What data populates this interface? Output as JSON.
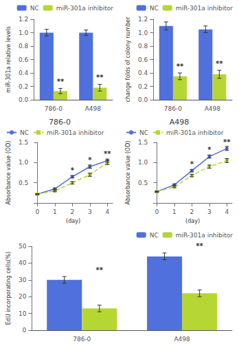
{
  "chart_data": [
    {
      "type": "bar",
      "ylabel": "miR-301a relative levels",
      "categories": [
        "786-0",
        "A498"
      ],
      "series": [
        {
          "name": "NC",
          "values": [
            1.0,
            1.0
          ],
          "errors": [
            0.05,
            0.04
          ]
        },
        {
          "name": "miR-301a inhibitor",
          "values": [
            0.13,
            0.18
          ],
          "errors": [
            0.04,
            0.05
          ]
        }
      ],
      "ylim": [
        0,
        1.2
      ],
      "yticks": [
        {
          "value": 0,
          "label": "0.0"
        },
        0.2,
        0.4,
        0.6,
        0.8,
        {
          "value": 1,
          "label": "1.0"
        },
        1.2
      ],
      "annotations": [
        {
          "text": "**",
          "x": "786-0",
          "y": 0.22
        },
        {
          "text": "**",
          "x": "A498",
          "y": 0.28
        }
      ],
      "legend": "upper right",
      "grid": false
    },
    {
      "type": "line",
      "title": "786-0",
      "xlabel": "(day)",
      "ylabel": "Absorbance value (OD)",
      "x": [
        0,
        1,
        2,
        3,
        4
      ],
      "series": [
        {
          "name": "NC",
          "values": [
            0.22,
            0.35,
            0.65,
            0.9,
            1.05
          ],
          "errors": [
            0.01,
            0.02,
            0.03,
            0.04,
            0.04
          ],
          "marker": "circle",
          "line_style": "solid"
        },
        {
          "name": "miR-301a inhibitor",
          "values": [
            0.22,
            0.3,
            0.5,
            0.7,
            1.0
          ],
          "errors": [
            0.01,
            0.02,
            0.03,
            0.04,
            0.05
          ],
          "marker": "square",
          "line_style": "dashed"
        }
      ],
      "xlim": [
        -0.2,
        4.3
      ],
      "xticks": [
        0,
        1,
        2,
        3,
        4
      ],
      "ylim": [
        0,
        1.5
      ],
      "yticks": [
        0.5,
        {
          "value": 1,
          "label": "1.0"
        },
        1.5
      ],
      "annotations": [
        {
          "text": "*",
          "x": 2,
          "y": 0.73
        },
        {
          "text": "*",
          "x": 3,
          "y": 0.98
        },
        {
          "text": "**",
          "x": 4,
          "y": 1.13
        }
      ],
      "legend": "upper left",
      "grid": false
    },
    {
      "type": "line",
      "title": "A498",
      "xlabel": "(day)",
      "ylabel": "Absorbance value (OD)",
      "x": [
        0,
        1,
        2,
        3,
        4
      ],
      "series": [
        {
          "name": "NC",
          "values": [
            0.28,
            0.45,
            0.8,
            1.15,
            1.35
          ],
          "errors": [
            0.01,
            0.02,
            0.03,
            0.04,
            0.05
          ],
          "marker": "circle",
          "line_style": "solid"
        },
        {
          "name": "miR-301a inhibitor",
          "values": [
            0.28,
            0.4,
            0.68,
            0.9,
            1.05
          ],
          "errors": [
            0.01,
            0.02,
            0.03,
            0.04,
            0.05
          ],
          "marker": "square",
          "line_style": "dashed"
        }
      ],
      "xlim": [
        -0.2,
        4.3
      ],
      "xticks": [
        0,
        1,
        2,
        3,
        4
      ],
      "ylim": [
        0,
        1.5
      ],
      "yticks": [
        0.5,
        {
          "value": 1,
          "label": "1.0"
        },
        1.5
      ],
      "annotations": [
        {
          "text": "*",
          "x": 2,
          "y": 0.88
        },
        {
          "text": "*",
          "x": 3,
          "y": 1.23
        },
        {
          "text": "**",
          "x": 4,
          "y": 1.43
        }
      ],
      "legend": "upper left",
      "grid": false
    },
    {
      "type": "bar",
      "ylabel": "change folds of colony number",
      "categories": [
        "786-0",
        "A498"
      ],
      "series": [
        {
          "name": "NC",
          "values": [
            1.1,
            1.05
          ],
          "errors": [
            0.06,
            0.05
          ]
        },
        {
          "name": "miR-301a inhibitor",
          "values": [
            0.35,
            0.38
          ],
          "errors": [
            0.05,
            0.06
          ]
        }
      ],
      "ylim": [
        0,
        1.2
      ],
      "yticks": [
        {
          "value": 0,
          "label": "0.0"
        },
        0.2,
        0.4,
        0.6,
        0.8,
        {
          "value": 1,
          "label": "1.0"
        },
        1.2
      ],
      "annotations": [
        {
          "text": "**",
          "x": "786-0",
          "y": 0.45
        },
        {
          "text": "**",
          "x": "A498",
          "y": 0.49
        }
      ],
      "legend": "upper right",
      "grid": false
    },
    {
      "type": "bar",
      "ylabel": "EdU incorporating cells(%)",
      "categories": [
        "786-0",
        "A498"
      ],
      "series": [
        {
          "name": "NC",
          "values": [
            30,
            44
          ],
          "errors": [
            2,
            2
          ]
        },
        {
          "name": "miR-301a inhibitor",
          "values": [
            13,
            22
          ],
          "errors": [
            2,
            2
          ]
        }
      ],
      "ylim": [
        0,
        50
      ],
      "yticks": [
        0,
        10,
        20,
        30,
        40,
        50
      ],
      "annotations": [
        {
          "text": "**",
          "x": "786-0",
          "y": 34
        },
        {
          "text": "**",
          "x": "A498",
          "y": 48
        }
      ],
      "legend": "upper right",
      "grid": false
    }
  ]
}
